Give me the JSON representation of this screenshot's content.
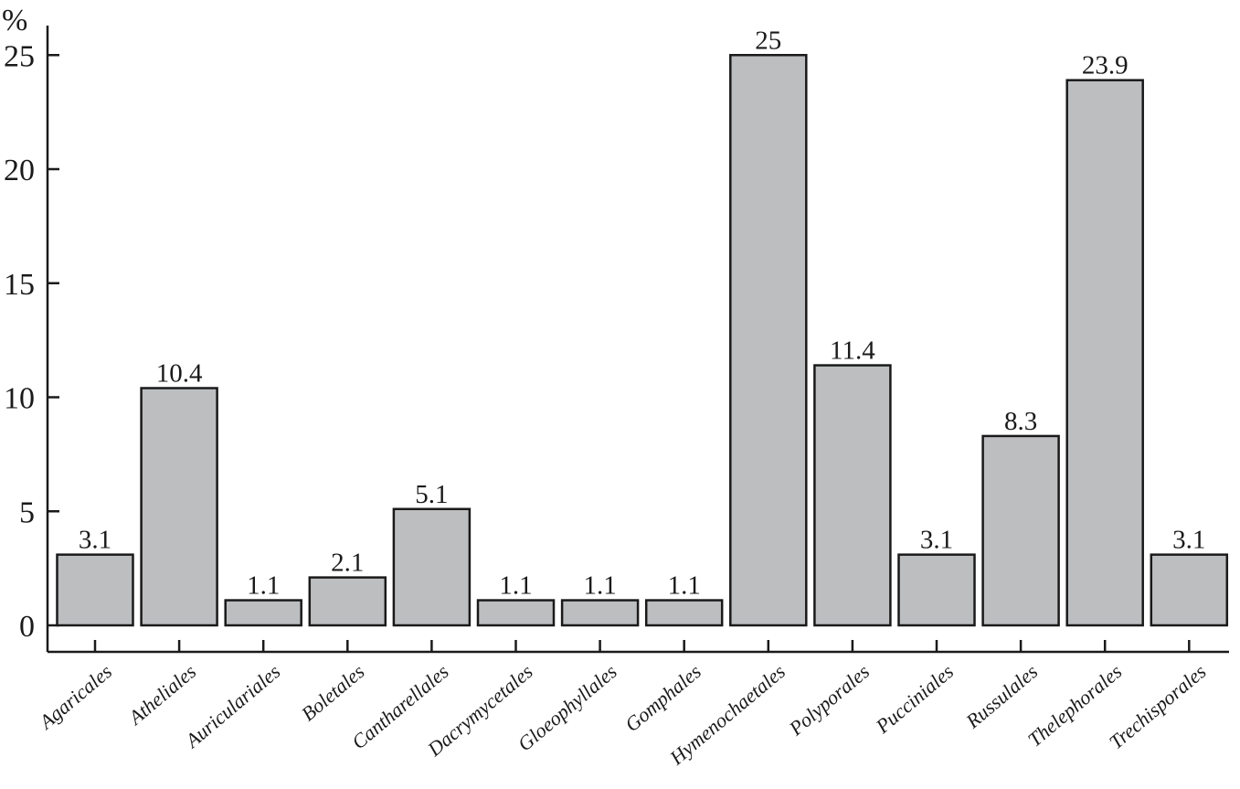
{
  "chart_data": {
    "type": "bar",
    "ylabel": "%",
    "xlabel": "",
    "ylim": [
      0,
      25
    ],
    "yticks": [
      0,
      5,
      10,
      15,
      20,
      25
    ],
    "grid": false,
    "categories": [
      "Agaricales",
      "Atheliales",
      "Auriculariales",
      "Boletales",
      "Cantharellales",
      "Dacrymycetales",
      "Gloeophyllales",
      "Gomphales",
      "Hymenochaetales",
      "Polyporales",
      "Pucciniales",
      "Russulales",
      "Thelephorales",
      "Trechisporales"
    ],
    "values": [
      3.1,
      10.4,
      1.1,
      2.1,
      5.1,
      1.1,
      1.1,
      1.1,
      25,
      11.4,
      3.1,
      8.3,
      23.9,
      3.1
    ],
    "value_labels": [
      "3.1",
      "10.4",
      "1.1",
      "2.1",
      "5.1",
      "1.1",
      "1.1",
      "1.1",
      "25",
      "11.4",
      "3.1",
      "8.3",
      "23.9",
      "3.1"
    ],
    "bar_color": "#bdbec0",
    "edge_color": "#1a1a1a"
  }
}
